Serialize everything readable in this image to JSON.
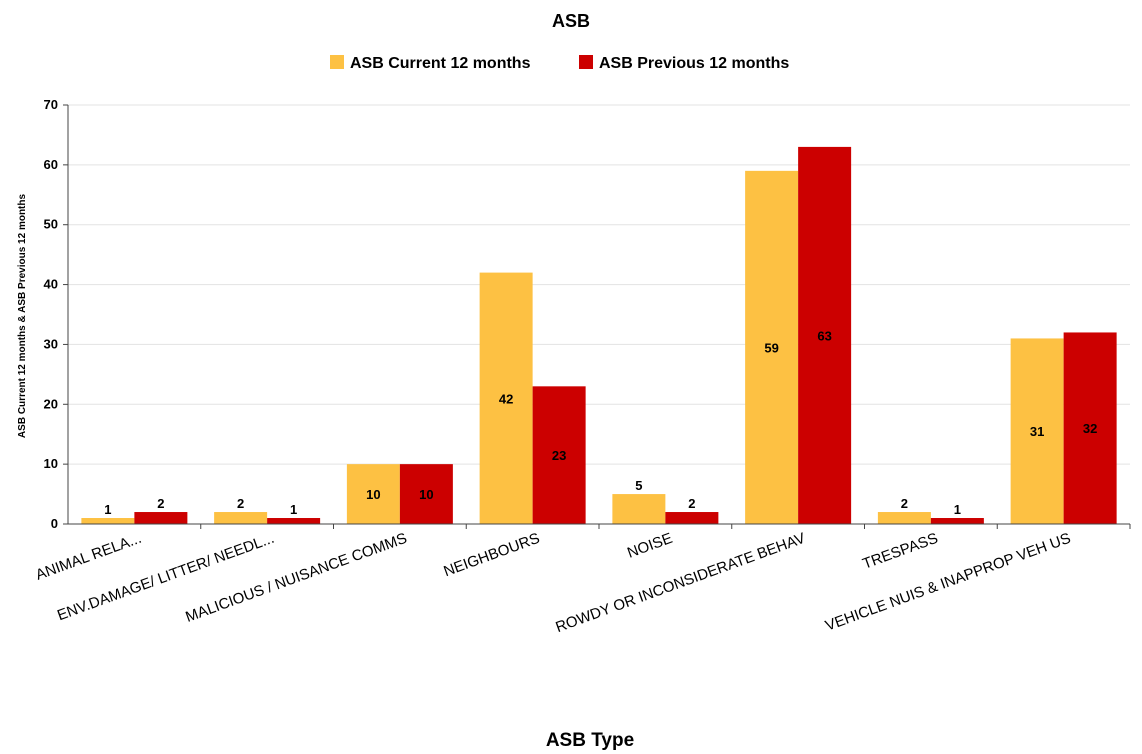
{
  "chart_data": {
    "type": "bar",
    "title": "ASB",
    "xlabel": "ASB Type",
    "ylabel": "ASB Current 12 months & ASB Previous 12 months",
    "ylim": [
      0,
      70
    ],
    "yticks": [
      0,
      10,
      20,
      30,
      40,
      50,
      60,
      70
    ],
    "grid": true,
    "legend_position": "top",
    "categories": [
      "ANIMAL RELA...",
      "ENV.DAMAGE/ LITTER/ NEEDL...",
      "MALICIOUS / NUISANCE COMMS",
      "NEIGHBOURS",
      "NOISE",
      "ROWDY OR INCONSIDERATE BEHAV",
      "TRESPASS",
      "VEHICLE NUIS & INAPPROP VEH US"
    ],
    "series": [
      {
        "name": "ASB Current 12 months",
        "color": "#FDC143",
        "values": [
          1,
          2,
          10,
          42,
          5,
          59,
          2,
          31
        ]
      },
      {
        "name": "ASB Previous 12 months",
        "color": "#CC0000",
        "values": [
          2,
          1,
          10,
          23,
          2,
          63,
          1,
          32
        ]
      }
    ]
  }
}
